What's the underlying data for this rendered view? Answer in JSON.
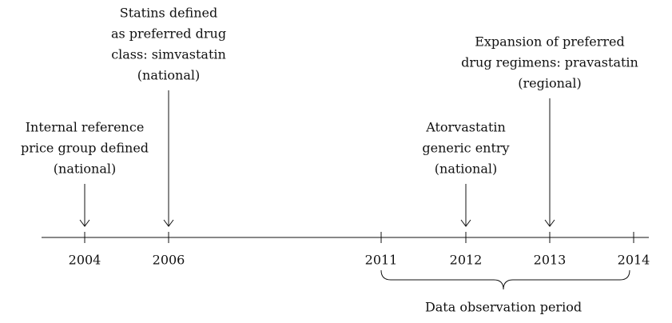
{
  "timeline": {
    "ticks": [
      "2004",
      "2006",
      "2011",
      "2012",
      "2013",
      "2014"
    ],
    "events": [
      {
        "lines": [
          "Internal reference",
          "price group defined",
          "(national)"
        ]
      },
      {
        "lines": [
          "Statins defined",
          "as preferred drug",
          "class: simvastatin",
          "(national)"
        ]
      },
      {
        "lines": [
          "Atorvastatin",
          "generic entry",
          "(national)"
        ]
      },
      {
        "lines": [
          "Expansion of preferred",
          "drug regimens: pravastatin",
          "(regional)"
        ]
      }
    ],
    "period_label": "Data observation period"
  }
}
